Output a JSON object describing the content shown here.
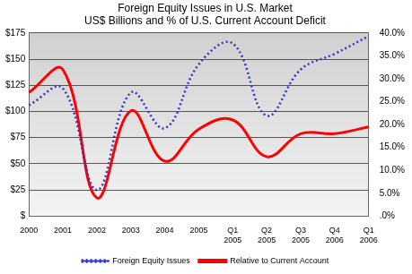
{
  "chart_data": {
    "type": "line",
    "title": "Foreign Equity Issues in U.S. Market",
    "subtitle": "US$ Billions and % of U.S. Current Account Deficit",
    "categories": [
      "2000",
      "2001",
      "2002",
      "2003",
      "2004",
      "2005",
      "Q1 2005",
      "Q2 2005",
      "Q3 2005",
      "Q4 2006",
      "Q1 2006"
    ],
    "series": [
      {
        "name": "Foreign Equity Issues",
        "color": "#3333cc",
        "line_style": "dotted",
        "axis": "y",
        "values": [
          106,
          122,
          25,
          118,
          84,
          145,
          165,
          96,
          140,
          155,
          172
        ]
      },
      {
        "name": "Relative to Current Account",
        "color": "#ff0000",
        "line_style": "solid",
        "axis": "y2",
        "values": [
          27,
          32,
          4,
          23,
          12,
          19,
          21,
          13,
          18,
          18,
          19.5
        ]
      }
    ],
    "ylim": [
      0,
      175
    ],
    "yticks": [
      {
        "value": 0,
        "label": "$"
      },
      {
        "value": 25,
        "label": "$25"
      },
      {
        "value": 50,
        "label": "$50"
      },
      {
        "value": 75,
        "label": "$75"
      },
      {
        "value": 100,
        "label": "$100"
      },
      {
        "value": 125,
        "label": "$125"
      },
      {
        "value": 150,
        "label": "$150"
      },
      {
        "value": 175,
        "label": "$175"
      }
    ],
    "y2lim": [
      0,
      40
    ],
    "y2ticks": [
      {
        "value": 0,
        "label": ".0%"
      },
      {
        "value": 5,
        "label": "5.0%"
      },
      {
        "value": 10,
        "label": "10.0%"
      },
      {
        "value": 15,
        "label": "15.0%"
      },
      {
        "value": 20,
        "label": "20.0%"
      },
      {
        "value": 25,
        "label": "25.0%"
      },
      {
        "value": 30,
        "label": "30.0%"
      },
      {
        "value": 35,
        "label": "35.0%"
      },
      {
        "value": 40,
        "label": "40.0%"
      }
    ],
    "grid": true,
    "legend": "bottom"
  }
}
